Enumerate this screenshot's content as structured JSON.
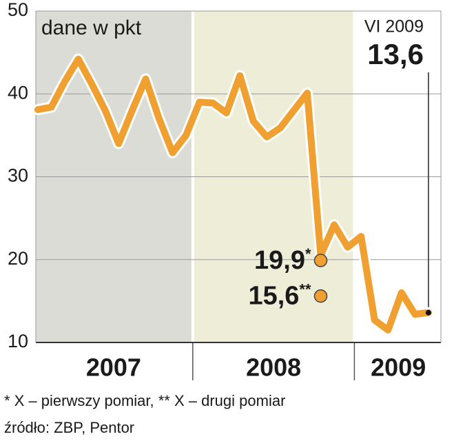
{
  "chart_data": {
    "type": "line",
    "unit_label": "dane w pkt",
    "categories": [
      null,
      null,
      null,
      null,
      null,
      null,
      null,
      null,
      null,
      null,
      null,
      null,
      null,
      null,
      null,
      null,
      null,
      null,
      null,
      null,
      null,
      null,
      null,
      null,
      null,
      null,
      null,
      null,
      null,
      null
    ],
    "series": [
      {
        "color": "#f0a030",
        "values": [
          38.1,
          38.4,
          41.5,
          44.2,
          41.2,
          38.0,
          34.0,
          38.0,
          41.8,
          37.0,
          32.9,
          35.0,
          39.0,
          38.9,
          37.7,
          42.2,
          36.7,
          34.8,
          35.9,
          38.0,
          40.1,
          20.5,
          24.2,
          21.5,
          22.8,
          12.7,
          11.5,
          16.0,
          13.4,
          13.6
        ]
      },
      {
        "color": "#f0a030",
        "marker": true,
        "values": [
          null,
          null,
          null,
          null,
          null,
          null,
          null,
          null,
          null,
          null,
          null,
          null,
          null,
          null,
          null,
          null,
          null,
          null,
          null,
          null,
          null,
          19.9,
          null,
          null,
          null,
          null,
          null,
          null,
          null,
          null
        ],
        "value_label": "19,9",
        "note": "*"
      },
      {
        "color": "#f0a030",
        "marker": true,
        "values": [
          null,
          null,
          null,
          null,
          null,
          null,
          null,
          null,
          null,
          null,
          null,
          null,
          null,
          null,
          null,
          null,
          null,
          null,
          null,
          null,
          null,
          15.6,
          null,
          null,
          null,
          null,
          null,
          null,
          null,
          null
        ],
        "value_label": "15,6",
        "note": "**"
      }
    ],
    "year_bands": [
      {
        "label": "2007",
        "months": 12,
        "color": "#dcdcd6"
      },
      {
        "label": "2008",
        "months": 12,
        "color": "#eeeed8"
      },
      {
        "label": "2009",
        "months": 6,
        "color": "#ffffff"
      }
    ],
    "end_label": {
      "date": "VI 2009",
      "value_label": "13,6"
    },
    "ylim": [
      10,
      50
    ],
    "yticks": [
      10,
      20,
      30,
      40,
      50
    ],
    "grid": true,
    "footnote": "* X – pierwszy pomiar, ** X – drugi pomiar",
    "source": "źródło: ZBP, Pentor"
  }
}
